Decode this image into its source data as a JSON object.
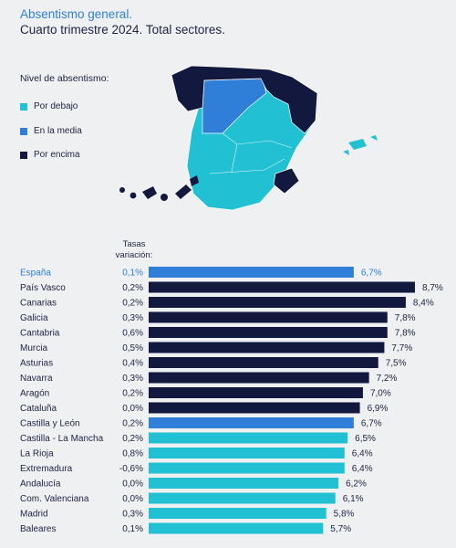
{
  "header": {
    "title": "Absentismo general.",
    "subtitle": "Cuarto trimestre 2024. Total sectores."
  },
  "legend": {
    "title": "Nivel de absentismo:",
    "items": [
      {
        "label": "Por debajo",
        "color": "#21c1d3"
      },
      {
        "label": "En la media",
        "color": "#2f7fd9"
      },
      {
        "label": "Por encima",
        "color": "#13183f"
      }
    ]
  },
  "rates_header": {
    "line1": "Tasas",
    "line2": "variación:"
  },
  "chart_data": {
    "type": "bar",
    "orientation": "horizontal",
    "categories": [
      "España",
      "País Vasco",
      "Canarias",
      "Galicia",
      "Cantabria",
      "Murcia",
      "Asturias",
      "Navarra",
      "Aragón",
      "Cataluña",
      "Castilla y León",
      "Castilla - La Mancha",
      "La Rioja",
      "Extremadura",
      "Andalucía",
      "Com. Valenciana",
      "Madrid",
      "Baleares"
    ],
    "values": [
      6.7,
      8.7,
      8.4,
      7.8,
      7.8,
      7.7,
      7.5,
      7.2,
      7.0,
      6.9,
      6.7,
      6.5,
      6.4,
      6.4,
      6.2,
      6.1,
      5.8,
      5.7
    ],
    "value_labels": [
      "6,7%",
      "8,7%",
      "8,4%",
      "7,8%",
      "7,8%",
      "7,7%",
      "7,5%",
      "7,2%",
      "7,0%",
      "6,9%",
      "6,7%",
      "6,5%",
      "6,4%",
      "6,4%",
      "6,2%",
      "6,1%",
      "5,8%",
      "5,7%"
    ],
    "variation_labels": [
      "0,1%",
      "0,2%",
      "0,2%",
      "0,3%",
      "0,6%",
      "0,5%",
      "0,4%",
      "0,3%",
      "0,2%",
      "0,0%",
      "0,2%",
      "0,2%",
      "0,8%",
      "-0,6%",
      "0,0%",
      "0,0%",
      "0,3%",
      "0,1%"
    ],
    "levels": [
      "En la media",
      "Por encima",
      "Por encima",
      "Por encima",
      "Por encima",
      "Por encima",
      "Por encima",
      "Por encima",
      "Por encima",
      "Por encima",
      "En la media",
      "Por debajo",
      "Por debajo",
      "Por debajo",
      "Por debajo",
      "Por debajo",
      "Por debajo",
      "Por debajo"
    ],
    "highlight": "España",
    "colors": {
      "Por debajo": "#21c1d3",
      "En la media": "#2f7fd9",
      "Por encima": "#13183f",
      "highlight_text": "#2f7fd9",
      "text": "#1e2240"
    },
    "xlim": [
      0,
      8.7
    ],
    "grid": false
  }
}
